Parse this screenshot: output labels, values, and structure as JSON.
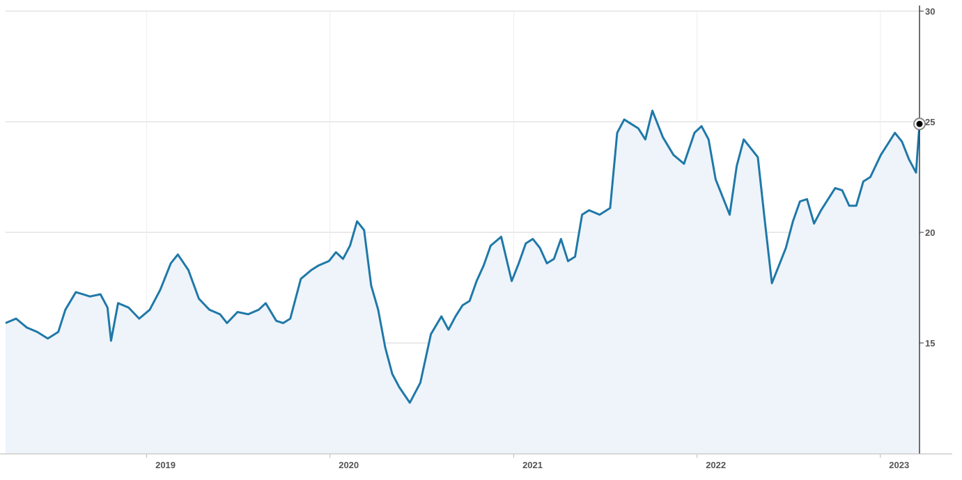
{
  "chart_data": {
    "type": "area",
    "title": "",
    "xlabel": "",
    "ylabel": "",
    "x_ticks": [
      "2019",
      "2020",
      "2021",
      "2022",
      "2023"
    ],
    "y_ticks": [
      "15",
      "20",
      "25",
      "30"
    ],
    "xlim": [
      "2018-03-26",
      "2023-03-20"
    ],
    "ylim": [
      10,
      30
    ],
    "grid": true,
    "y_axis_side": "right",
    "line_color": "#1f78a8",
    "fill_color": "#eef4fa",
    "grid_color": "#dddddd",
    "marker": {
      "date": "2023-03-20",
      "value": 24.9
    },
    "series": [
      {
        "x": [
          "2018-03-26",
          "2018-04-16",
          "2018-05-07",
          "2018-05-28",
          "2018-06-18",
          "2018-07-09",
          "2018-07-23",
          "2018-08-13",
          "2018-08-27",
          "2018-09-10",
          "2018-10-01",
          "2018-10-15",
          "2018-10-22",
          "2018-11-05",
          "2018-11-26",
          "2018-12-17",
          "2019-01-07",
          "2019-01-28",
          "2019-02-18",
          "2019-03-04",
          "2019-03-25",
          "2019-04-15",
          "2019-05-06",
          "2019-05-27",
          "2019-06-10",
          "2019-07-01",
          "2019-07-22",
          "2019-08-12",
          "2019-08-26",
          "2019-09-16",
          "2019-09-30",
          "2019-10-14",
          "2019-11-04",
          "2019-11-25",
          "2019-12-09",
          "2019-12-30",
          "2020-01-13",
          "2020-01-27",
          "2020-02-10",
          "2020-02-24",
          "2020-03-09",
          "2020-03-23",
          "2020-04-06",
          "2020-04-20",
          "2020-05-04",
          "2020-05-18",
          "2020-06-08",
          "2020-06-29",
          "2020-07-20",
          "2020-08-10",
          "2020-08-24",
          "2020-09-07",
          "2020-09-21",
          "2020-10-05",
          "2020-10-19",
          "2020-11-02",
          "2020-11-16",
          "2020-12-07",
          "2020-12-28",
          "2021-01-11",
          "2021-01-25",
          "2021-02-08",
          "2021-02-22",
          "2021-03-08",
          "2021-03-22",
          "2021-04-05",
          "2021-04-19",
          "2021-05-03",
          "2021-05-17",
          "2021-05-31",
          "2021-06-21",
          "2021-07-12",
          "2021-07-26",
          "2021-08-09",
          "2021-08-23",
          "2021-09-06",
          "2021-09-20",
          "2021-10-04",
          "2021-10-25",
          "2021-11-15",
          "2021-12-06",
          "2021-12-27",
          "2022-01-10",
          "2022-01-24",
          "2022-02-07",
          "2022-02-21",
          "2022-03-07",
          "2022-03-21",
          "2022-04-04",
          "2022-04-18",
          "2022-05-02",
          "2022-05-16",
          "2022-05-30",
          "2022-06-13",
          "2022-06-27",
          "2022-07-11",
          "2022-07-25",
          "2022-08-08",
          "2022-08-22",
          "2022-09-05",
          "2022-09-19",
          "2022-10-03",
          "2022-10-17",
          "2022-10-31",
          "2022-11-14",
          "2022-11-28",
          "2022-12-12",
          "2023-01-02",
          "2023-01-16",
          "2023-01-30",
          "2023-02-13",
          "2023-02-27",
          "2023-03-13",
          "2023-03-20"
        ],
        "values": [
          15.9,
          16.1,
          15.7,
          15.5,
          15.2,
          15.5,
          16.5,
          17.3,
          17.2,
          17.1,
          17.2,
          16.6,
          15.1,
          16.8,
          16.6,
          16.1,
          16.5,
          17.4,
          18.6,
          19.0,
          18.3,
          17.0,
          16.5,
          16.3,
          15.9,
          16.4,
          16.3,
          16.5,
          16.8,
          16.0,
          15.9,
          16.1,
          17.9,
          18.3,
          18.5,
          18.7,
          19.1,
          18.8,
          19.4,
          20.5,
          20.1,
          17.6,
          16.5,
          14.8,
          13.6,
          13.0,
          12.3,
          13.2,
          15.4,
          16.2,
          15.6,
          16.2,
          16.7,
          16.9,
          17.8,
          18.5,
          19.4,
          19.8,
          17.8,
          18.6,
          19.5,
          19.7,
          19.3,
          18.6,
          18.8,
          19.7,
          18.7,
          18.9,
          20.8,
          21.0,
          20.8,
          21.1,
          24.5,
          25.1,
          24.9,
          24.7,
          24.2,
          25.5,
          24.3,
          23.5,
          23.1,
          24.5,
          24.8,
          24.2,
          22.4,
          21.6,
          20.8,
          23.0,
          24.2,
          23.8,
          23.4,
          20.5,
          17.7,
          18.5,
          19.3,
          20.5,
          21.4,
          21.5,
          20.4,
          21.0,
          21.5,
          22.0,
          21.9,
          21.2,
          21.2,
          22.3,
          22.5,
          23.5,
          24.0,
          24.5,
          24.1,
          23.3,
          22.7,
          24.9
        ]
      }
    ]
  }
}
